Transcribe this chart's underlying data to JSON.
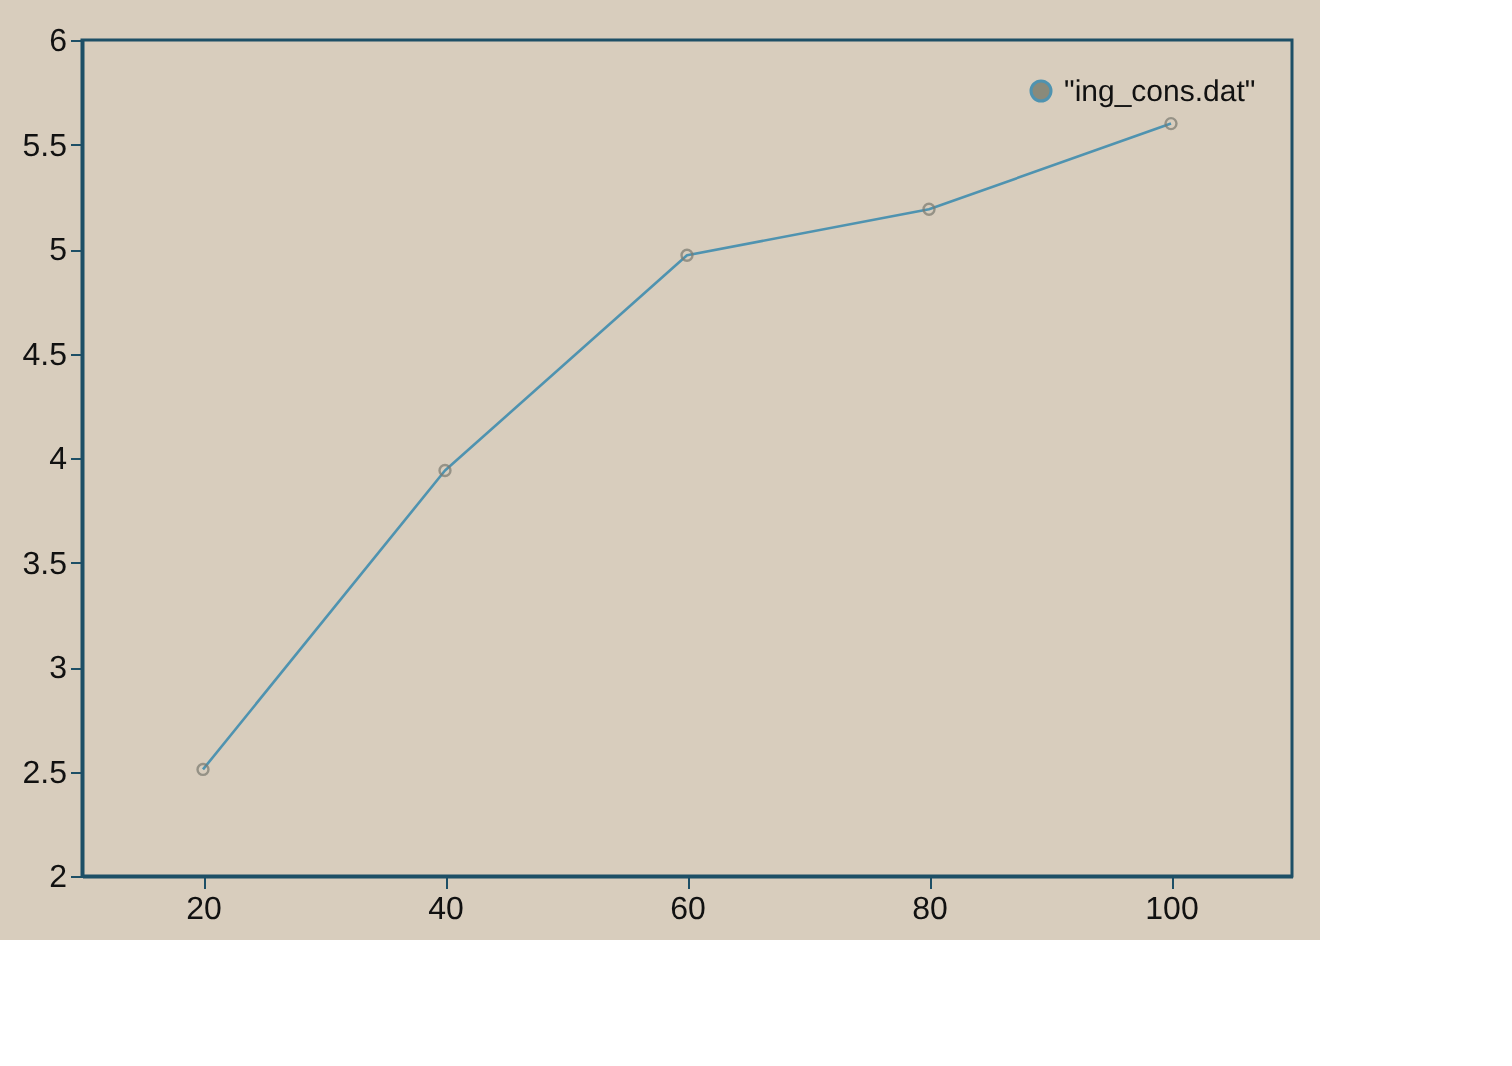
{
  "chart_data": {
    "type": "line",
    "x": [
      20,
      40,
      60,
      80,
      100
    ],
    "series": [
      {
        "name": "\"ing_cons.dat\"",
        "color": "#4f93b0",
        "values": [
          2.51,
          3.94,
          4.97,
          5.19,
          5.6
        ]
      }
    ],
    "xlim": [
      10,
      110
    ],
    "xticks": [
      20,
      40,
      60,
      80,
      100
    ],
    "ylim": [
      2,
      6
    ],
    "yticks": [
      2,
      2.5,
      3,
      3.5,
      4,
      4.5,
      5,
      5.5,
      6
    ],
    "marker": "circle",
    "line_style": "solid",
    "legend": "top right",
    "grid": false
  }
}
